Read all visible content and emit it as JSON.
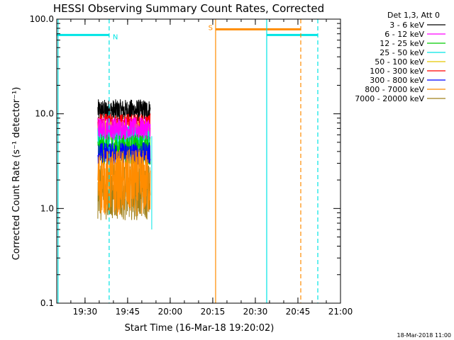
{
  "chart_data": {
    "type": "line",
    "title": "HESSI Observing Summary Count Rates, Corrected",
    "xlabel": "Start Time (16-Mar-18 19:20:02)",
    "ylabel": "Corrected Count Rate (s⁻¹ detector⁻¹)",
    "yscale": "log",
    "ylim": [
      0.1,
      100.0
    ],
    "xlim": [
      "19:20:02",
      "21:00:00"
    ],
    "x_ticks": [
      "19:30",
      "19:45",
      "20:00",
      "20:15",
      "20:30",
      "20:45",
      "21:00"
    ],
    "y_ticks": [
      "0.1",
      "1.0",
      "10.0",
      "100.0"
    ],
    "grid": false,
    "legend_title": "Det 1,3, Att 0",
    "legend_position": "right",
    "series": [
      {
        "name": "3 - 6 keV",
        "color": "#000000",
        "start": "19:34:30",
        "end": "19:53:00",
        "level": 10.8,
        "spread": 0.12
      },
      {
        "name": "6 - 12 keV",
        "color": "#ff00ff",
        "start": "19:34:30",
        "end": "19:53:00",
        "level": 7.0,
        "spread": 0.12
      },
      {
        "name": "12 - 25 keV",
        "color": "#00cc00",
        "start": "19:34:30",
        "end": "19:53:00",
        "level": 4.2,
        "spread": 0.16
      },
      {
        "name": "25 - 50 keV",
        "color": "#00e5e5",
        "start": "19:34:30",
        "end": "19:53:00",
        "level": 5.8,
        "spread": 0.12
      },
      {
        "name": "50 - 100 keV",
        "color": "#e5c800",
        "start": "19:34:30",
        "end": "19:53:00",
        "level": 6.5,
        "spread": 0.12
      },
      {
        "name": "100 - 300 keV",
        "color": "#ff0000",
        "start": "19:34:30",
        "end": "19:53:00",
        "level": 8.0,
        "spread": 0.1
      },
      {
        "name": "300 - 800 keV",
        "color": "#0000ff",
        "start": "19:34:30",
        "end": "19:53:00",
        "level": 3.8,
        "spread": 0.12
      },
      {
        "name": "800 - 7000 keV",
        "color": "#ff8c00",
        "start": "19:34:30",
        "end": "19:53:00",
        "level": 1.9,
        "spread": 0.35
      },
      {
        "name": "7000 - 20000 keV",
        "color": "#a0801a",
        "start": "19:34:30",
        "end": "19:53:00",
        "level": 1.5,
        "spread": 0.3
      }
    ],
    "flags": [
      {
        "label": "N",
        "color": "#00e5e5",
        "start": "19:20:02",
        "end": "19:38:30",
        "value": 68
      },
      {
        "label": "",
        "color": "#00e5e5",
        "start": "20:34:00",
        "end": "20:52:00",
        "value": 68
      },
      {
        "label": "S",
        "color": "#ff8c00",
        "start": "20:16:00",
        "end": "20:46:00",
        "value": 78
      }
    ],
    "vlines": [
      {
        "time": "19:20:30",
        "color": "#00e5e5",
        "style": "solid"
      },
      {
        "time": "19:38:30",
        "color": "#00e5e5",
        "style": "dashed"
      },
      {
        "time": "20:16:00",
        "color": "#ff8c00",
        "style": "solid"
      },
      {
        "time": "20:34:00",
        "color": "#00e5e5",
        "style": "solid"
      },
      {
        "time": "20:46:00",
        "color": "#ff8c00",
        "style": "dashed"
      },
      {
        "time": "20:52:00",
        "color": "#00e5e5",
        "style": "dashed"
      }
    ]
  },
  "footer": {
    "timestamp": "18-Mar-2018 11:00"
  }
}
